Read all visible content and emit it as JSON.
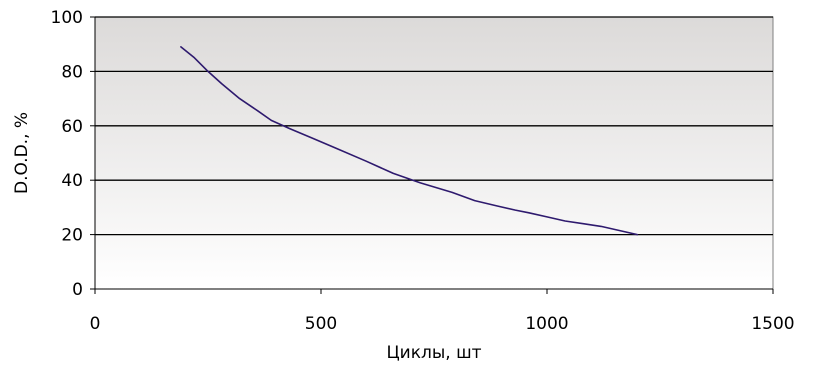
{
  "chart_data": {
    "type": "line",
    "title": "",
    "xlabel": "Циклы, шт",
    "ylabel": "D.O.D., %",
    "xlim": [
      0,
      1500
    ],
    "ylim": [
      0,
      100
    ],
    "x_ticks": [
      0,
      500,
      1000,
      1500
    ],
    "y_ticks": [
      0,
      20,
      40,
      60,
      80,
      100
    ],
    "x_tick_labels": [
      "0",
      "500",
      "1000",
      "1500"
    ],
    "y_tick_labels": [
      "0",
      "20",
      "40",
      "60",
      "80",
      "100"
    ],
    "grid": "horizontal",
    "legend": "none",
    "background": "gradient gray to white",
    "series": [
      {
        "color": "#2e1a6e",
        "x": [
          190,
          220,
          250,
          280,
          320,
          360,
          390,
          430,
          480,
          530,
          600,
          660,
          720,
          790,
          840,
          890,
          930,
          960,
          1000,
          1040,
          1080,
          1120,
          1160,
          1200
        ],
        "y": [
          89,
          85,
          80,
          75.5,
          70,
          65.5,
          62,
          59,
          55.5,
          52,
          47,
          42.5,
          39,
          35.5,
          32.5,
          30.5,
          29,
          28,
          26.5,
          25,
          24,
          23,
          21.5,
          20
        ]
      }
    ]
  }
}
